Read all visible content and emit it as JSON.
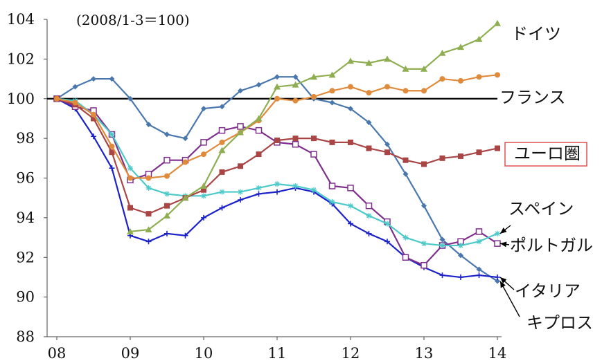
{
  "chart_data": {
    "type": "line",
    "annotation": "(2008/1-3＝100)",
    "x_tick_labels": [
      "08",
      "09",
      "10",
      "11",
      "12",
      "13",
      "14"
    ],
    "y_ticks": [
      88,
      90,
      92,
      94,
      96,
      98,
      100,
      102,
      104
    ],
    "ylim": [
      88,
      104
    ],
    "x_period": "quarterly, 2008Q1 to 2014Q1",
    "grid": false,
    "reference_line": 100,
    "series": [
      {
        "name": "ドイツ",
        "color": "#8fae52",
        "marker": "triangle",
        "values": [
          null,
          null,
          null,
          null,
          93.3,
          93.4,
          94.1,
          95.0,
          95.6,
          97.4,
          98.3,
          99.0,
          100.6,
          100.7,
          101.1,
          101.2,
          101.9,
          101.8,
          102.0,
          101.5,
          101.5,
          102.3,
          102.6,
          103.0,
          103.8
        ]
      },
      {
        "name": "フランス",
        "color": "#e08a3c",
        "marker": "circle",
        "values": [
          100.0,
          99.8,
          99.2,
          97.6,
          96.0,
          96.0,
          96.1,
          96.8,
          97.2,
          97.8,
          98.3,
          98.9,
          100.0,
          99.9,
          100.1,
          100.4,
          100.6,
          100.3,
          100.6,
          100.4,
          100.4,
          101.0,
          100.9,
          101.1,
          101.2
        ]
      },
      {
        "name": "ユーロ圏",
        "color": "#a94545",
        "marker": "square-filled",
        "label_boxed": true,
        "label_box_color": "#e05050",
        "values": [
          100.0,
          99.7,
          99.0,
          97.3,
          94.5,
          94.2,
          94.6,
          95.0,
          95.4,
          96.3,
          96.6,
          97.2,
          97.9,
          98.0,
          98.0,
          97.8,
          97.8,
          97.5,
          97.3,
          96.9,
          96.7,
          97.0,
          97.1,
          97.3,
          97.5
        ]
      },
      {
        "name": "スペイン",
        "color": "#4cc9c9",
        "marker": "asterisk",
        "values": [
          100.0,
          99.9,
          99.2,
          98.2,
          96.5,
          95.5,
          95.2,
          95.1,
          95.1,
          95.3,
          95.3,
          95.5,
          95.7,
          95.6,
          95.4,
          94.8,
          94.6,
          94.1,
          93.7,
          93.0,
          92.7,
          92.6,
          92.6,
          92.8,
          93.2
        ]
      },
      {
        "name": "ポルトガル",
        "color": "#7d2f8b",
        "marker": "square-open",
        "values": [
          100.0,
          99.6,
          99.4,
          98.2,
          95.9,
          96.2,
          96.9,
          96.9,
          97.8,
          98.4,
          98.6,
          98.4,
          97.8,
          97.7,
          97.2,
          95.6,
          95.5,
          94.6,
          93.8,
          92.0,
          91.6,
          92.6,
          92.8,
          93.3,
          92.7
        ]
      },
      {
        "name": "イタリア",
        "color": "#1a21c9",
        "marker": "plus",
        "values": [
          100.0,
          99.5,
          98.1,
          96.5,
          93.1,
          92.8,
          93.2,
          93.1,
          94.0,
          94.5,
          94.9,
          95.2,
          95.3,
          95.5,
          95.3,
          94.7,
          93.7,
          93.2,
          92.8,
          92.0,
          91.5,
          91.1,
          91.0,
          91.1,
          91.0
        ]
      },
      {
        "name": "キプロス",
        "color": "#4a78ad",
        "marker": "diamond",
        "values": [
          100.0,
          100.6,
          101.0,
          101.0,
          100.0,
          98.7,
          98.2,
          98.0,
          99.5,
          99.6,
          100.4,
          100.7,
          101.1,
          101.1,
          100.0,
          99.8,
          99.5,
          98.8,
          97.7,
          96.2,
          94.6,
          92.9,
          92.1,
          91.4,
          90.8
        ]
      }
    ]
  }
}
